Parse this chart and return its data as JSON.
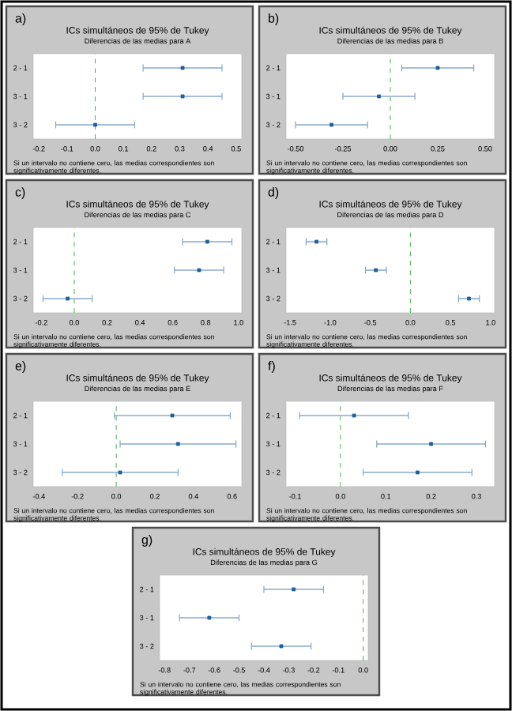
{
  "chart_data": [
    {
      "type": "scatter",
      "orientation": "horizontal",
      "title": "ICs simultáneos de 95% de Tukey",
      "subtitle": "Diferencias de las medias para A",
      "categories": [
        "2 - 1",
        "3 - 1",
        "3 - 2"
      ],
      "values": [
        0.31,
        0.31,
        0.0
      ],
      "errors": [
        0.14,
        0.14,
        0.14
      ],
      "color": "#1f5f9f",
      "marker": "square",
      "xlim": [
        -0.22,
        0.52
      ],
      "xticks": [
        -0.2,
        -0.1,
        {
          "value": 0.0,
          "label": "0.0"
        },
        0.1,
        0.2,
        0.3,
        0.4,
        0.5
      ],
      "ref_lines": [
        {
          "axis": "x",
          "value": 0,
          "color": "#4caf50",
          "line_style": "dashed"
        }
      ],
      "annotations": [
        "a)",
        "Si un intervalo no contiene cero, las medias correspondientes son significativamente diferentes."
      ]
    },
    {
      "type": "scatter",
      "orientation": "horizontal",
      "title": "ICs simultáneos de 95% de Tukey",
      "subtitle": "Diferencias de las medias para B",
      "categories": [
        "2 - 1",
        "3 - 1",
        "3 - 2"
      ],
      "values": [
        0.25,
        -0.06,
        -0.31
      ],
      "errors": [
        0.19,
        0.19,
        0.19
      ],
      "color": "#1f5f9f",
      "marker": "square",
      "xlim": [
        -0.55,
        0.55
      ],
      "xticks": [
        {
          "value": -0.5,
          "label": "-0.50"
        },
        -0.25,
        {
          "value": 0.0,
          "label": "0.00"
        },
        0.25,
        {
          "value": 0.5,
          "label": "0.50"
        }
      ],
      "ref_lines": [
        {
          "axis": "x",
          "value": 0,
          "color": "#4caf50",
          "line_style": "dashed"
        }
      ],
      "annotations": [
        "b)",
        "Si un intervalo no contiene cero, las medias correspondientes son significativamente diferentes."
      ]
    },
    {
      "type": "scatter",
      "orientation": "horizontal",
      "title": "ICs simultáneos de 95% de Tukey",
      "subtitle": "Diferencias de las medias para C",
      "categories": [
        "2 - 1",
        "3 - 1",
        "3 - 2"
      ],
      "values": [
        0.81,
        0.76,
        -0.04
      ],
      "errors": [
        0.15,
        0.15,
        0.15
      ],
      "color": "#1f5f9f",
      "marker": "square",
      "xlim": [
        -0.25,
        1.02
      ],
      "xticks": [
        -0.2,
        {
          "value": 0.0,
          "label": "0.0"
        },
        0.2,
        0.4,
        0.6,
        0.8,
        {
          "value": 1.0,
          "label": "1.0"
        }
      ],
      "ref_lines": [
        {
          "axis": "x",
          "value": 0,
          "color": "#4caf50",
          "line_style": "dashed"
        }
      ],
      "annotations": [
        "c)",
        "Si un intervalo no contiene cero, las medias correspondientes son significativamente diferentes."
      ]
    },
    {
      "type": "scatter",
      "orientation": "horizontal",
      "title": "ICs simultáneos de 95% de Tukey",
      "subtitle": "Diferencias de las medias para D",
      "categories": [
        "2 - 1",
        "3 - 1",
        "3 - 2"
      ],
      "values": [
        -1.17,
        -0.43,
        0.73
      ],
      "errors": [
        0.13,
        0.13,
        0.13
      ],
      "color": "#1f5f9f",
      "marker": "square",
      "xlim": [
        -1.55,
        1.05
      ],
      "xticks": [
        -1.5,
        {
          "value": -1.0,
          "label": "-1.0"
        },
        -0.5,
        {
          "value": 0.0,
          "label": "0.0"
        },
        0.5,
        {
          "value": 1.0,
          "label": "1.0"
        }
      ],
      "ref_lines": [
        {
          "axis": "x",
          "value": 0,
          "color": "#4caf50",
          "line_style": "dashed"
        }
      ],
      "annotations": [
        "d)",
        "Si un intervalo no contiene cero, las medias correspondientes son significativamente diferentes."
      ]
    },
    {
      "type": "scatter",
      "orientation": "horizontal",
      "title": "ICs simultáneos de 95% de Tukey",
      "subtitle": "Diferencias de las medias para E",
      "categories": [
        "2 - 1",
        "3 - 1",
        "3 - 2"
      ],
      "values": [
        0.29,
        0.32,
        0.02
      ],
      "errors": [
        0.3,
        0.3,
        0.3
      ],
      "color": "#1f5f9f",
      "marker": "square",
      "xlim": [
        -0.43,
        0.65
      ],
      "xticks": [
        -0.4,
        -0.2,
        {
          "value": 0.0,
          "label": "0.0"
        },
        0.2,
        0.4,
        0.6
      ],
      "ref_lines": [
        {
          "axis": "x",
          "value": 0,
          "color": "#4caf50",
          "line_style": "dashed"
        }
      ],
      "annotations": [
        "e)",
        "Si un intervalo no contiene cero, las medias correspondientes son significativamente diferentes."
      ]
    },
    {
      "type": "scatter",
      "orientation": "horizontal",
      "title": "ICs simultáneos de 95% de Tukey",
      "subtitle": "Diferencias de las medias para F",
      "categories": [
        "2 - 1",
        "3 - 1",
        "3 - 2"
      ],
      "values": [
        0.03,
        0.2,
        0.17
      ],
      "errors": [
        0.12,
        0.12,
        0.12
      ],
      "color": "#1f5f9f",
      "marker": "square",
      "xlim": [
        -0.12,
        0.34
      ],
      "xticks": [
        -0.1,
        {
          "value": 0.0,
          "label": "0.0"
        },
        0.1,
        0.2,
        0.3
      ],
      "ref_lines": [
        {
          "axis": "x",
          "value": 0,
          "color": "#4caf50",
          "line_style": "dashed"
        }
      ],
      "annotations": [
        "f)",
        "Si un intervalo no contiene cero, las medias correspondientes son significativamente diferentes."
      ]
    },
    {
      "type": "scatter",
      "orientation": "horizontal",
      "title": "ICs simultáneos de 95% de Tukey",
      "subtitle": "Diferencias de las medias para G",
      "categories": [
        "2 - 1",
        "3 - 1",
        "3 - 2"
      ],
      "values": [
        -0.28,
        -0.62,
        -0.33
      ],
      "errors": [
        0.12,
        0.12,
        0.12
      ],
      "color": "#1f5f9f",
      "marker": "square",
      "xlim": [
        -0.82,
        0.02
      ],
      "xticks": [
        -0.8,
        -0.7,
        -0.6,
        -0.5,
        -0.4,
        -0.3,
        -0.2,
        -0.1,
        {
          "value": 0.0,
          "label": "0.0"
        }
      ],
      "ref_lines": [
        {
          "axis": "x",
          "value": 0,
          "color": "#4caf50",
          "line_style": "dashed"
        }
      ],
      "annotations": [
        "g)",
        "Si un intervalo no contiene cero, las medias correspondientes son significativamente diferentes."
      ]
    }
  ]
}
